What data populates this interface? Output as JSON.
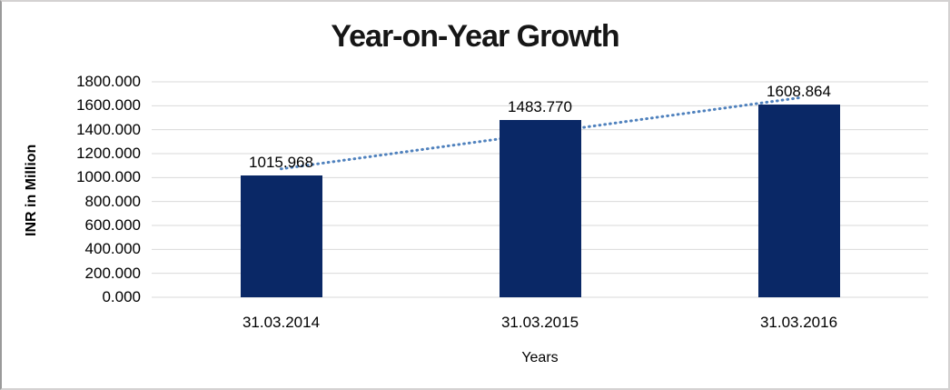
{
  "chart_data": {
    "type": "bar",
    "title": "Year-on-Year Growth",
    "xlabel": "Years",
    "ylabel": "INR in Million",
    "categories": [
      "31.03.2014",
      "31.03.2015",
      "31.03.2016"
    ],
    "values": [
      1015.968,
      1483.77,
      1608.864
    ],
    "data_labels": [
      "1015.968",
      "1483.770",
      "1608.864"
    ],
    "ylim": [
      0,
      1800
    ],
    "ytick_labels": [
      "0.000",
      "200.000",
      "400.000",
      "600.000",
      "800.000",
      "1000.000",
      "1200.000",
      "1400.000",
      "1600.000",
      "1800.000"
    ],
    "grid": true,
    "legend": "none",
    "colors": {
      "bar": "#0a2866",
      "gridline": "#d9d9d9",
      "trendline": "#4f81bd",
      "title_text": "#161616"
    },
    "trendline": {
      "style": "dotted",
      "color": "#4f81bd",
      "from_category_index": 0,
      "to_category_index": 2,
      "start_value": 1073,
      "end_value": 1666
    }
  }
}
